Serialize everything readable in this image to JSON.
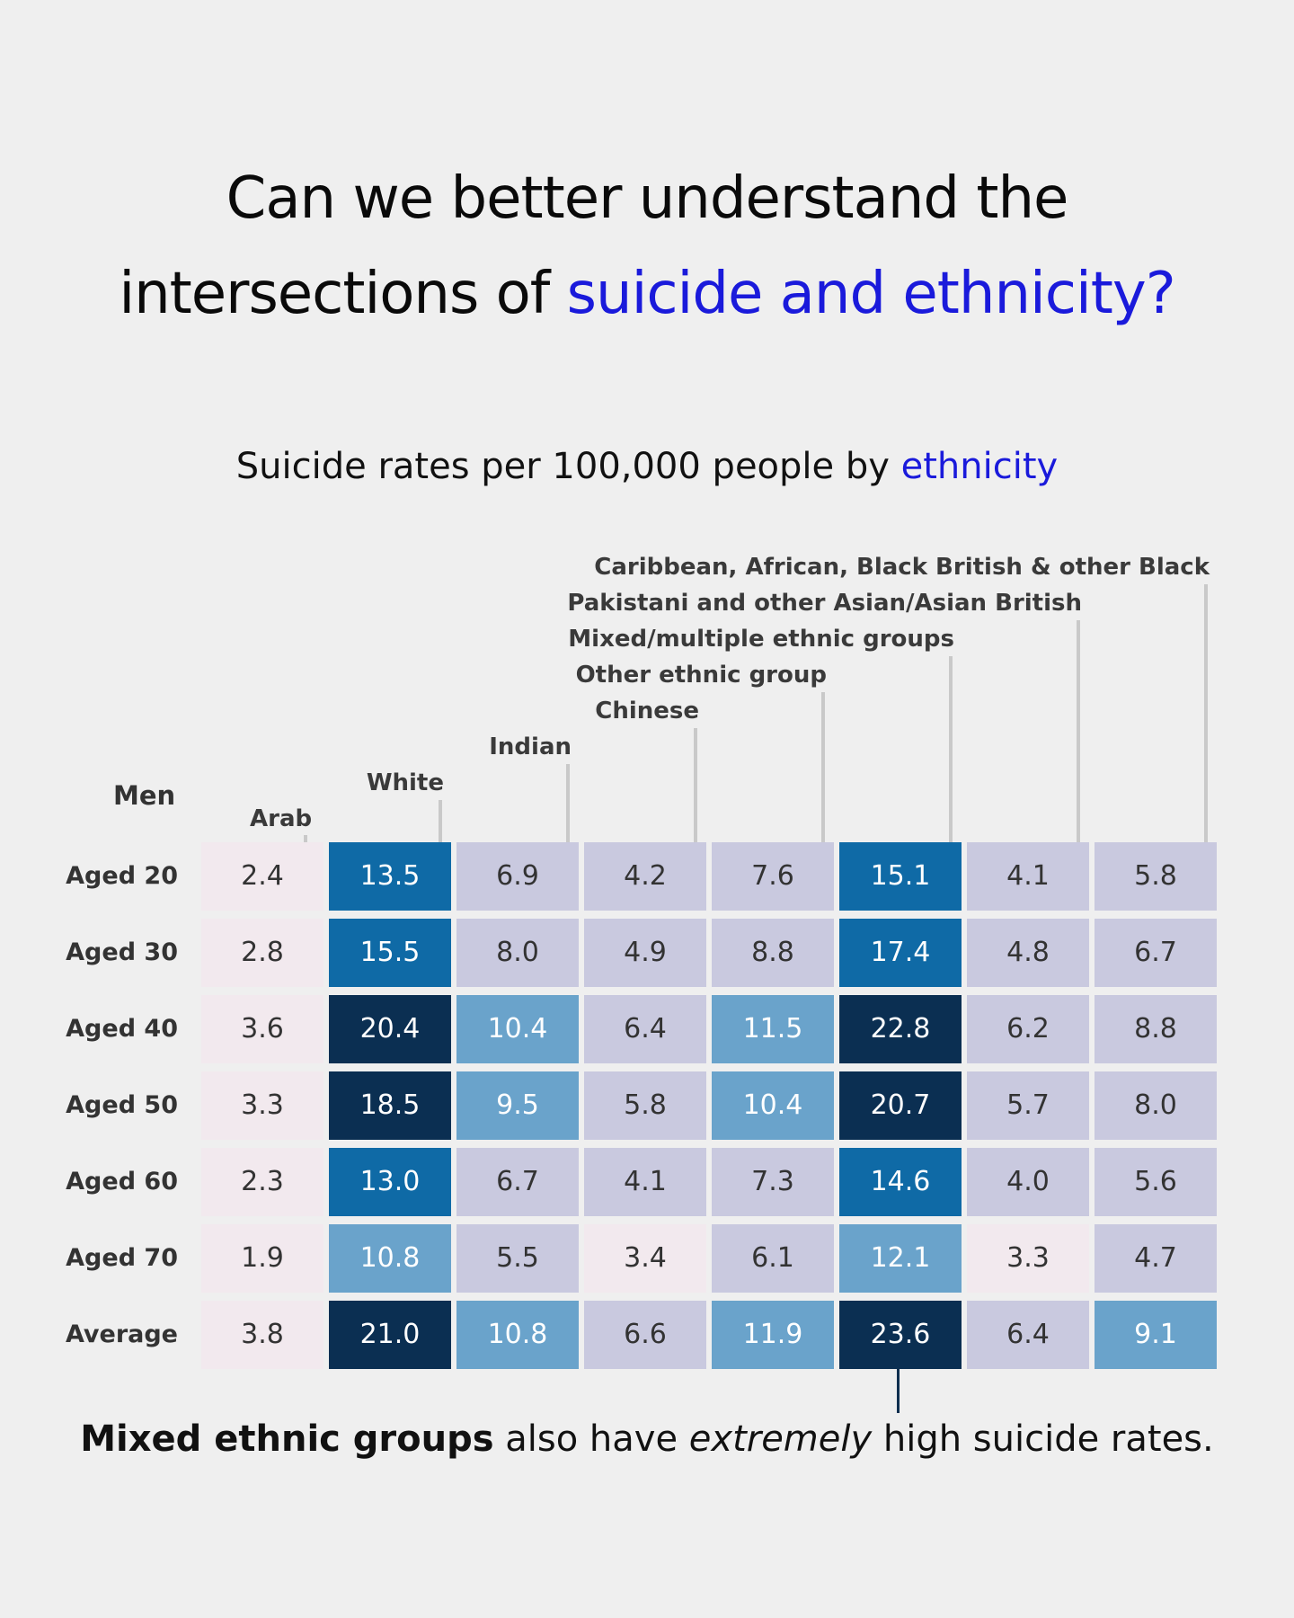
{
  "headline": {
    "line1": "Can we better understand the",
    "line2_prefix": "intersections of ",
    "line2_accent": "suicide and ethnicity?"
  },
  "chart_data": {
    "type": "heatmap",
    "title_prefix": "Suicide rates per 100,000 people by ",
    "title_accent": "ethnicity",
    "group_label": "Men",
    "columns": [
      "Arab",
      "White",
      "Indian",
      "Chinese",
      "Other ethnic group",
      "Mixed/multiple ethnic groups",
      "Pakistani and other Asian/Asian British",
      "Caribbean, African, Black British & other Black"
    ],
    "rows": [
      "Aged 20",
      "Aged 30",
      "Aged 40",
      "Aged 50",
      "Aged 60",
      "Aged 70",
      "Average"
    ],
    "values": [
      [
        2.4,
        13.5,
        6.9,
        4.2,
        7.6,
        15.1,
        4.1,
        5.8
      ],
      [
        2.8,
        15.5,
        8.0,
        4.9,
        8.8,
        17.4,
        4.8,
        6.7
      ],
      [
        3.6,
        20.4,
        10.4,
        6.4,
        11.5,
        22.8,
        6.2,
        8.8
      ],
      [
        3.3,
        18.5,
        9.5,
        5.8,
        10.4,
        20.7,
        5.7,
        8.0
      ],
      [
        2.3,
        13.0,
        6.7,
        4.1,
        7.3,
        14.6,
        4.0,
        5.6
      ],
      [
        1.9,
        10.8,
        5.5,
        3.4,
        6.1,
        12.1,
        3.3,
        4.7
      ],
      [
        3.8,
        21.0,
        10.8,
        6.6,
        11.9,
        23.6,
        6.4,
        9.1
      ]
    ],
    "color_scale": {
      "under_4": "#f2e9ee",
      "4_to_9": "#c9c9df",
      "9_to_13": "#6aa3cb",
      "13_to_18": "#0f6aa6",
      "18_plus": "#0b2f52"
    }
  },
  "caption": {
    "bold": "Mixed ethnic groups",
    "middle": " also have ",
    "italic": "extremely",
    "end": " high suicide rates."
  }
}
